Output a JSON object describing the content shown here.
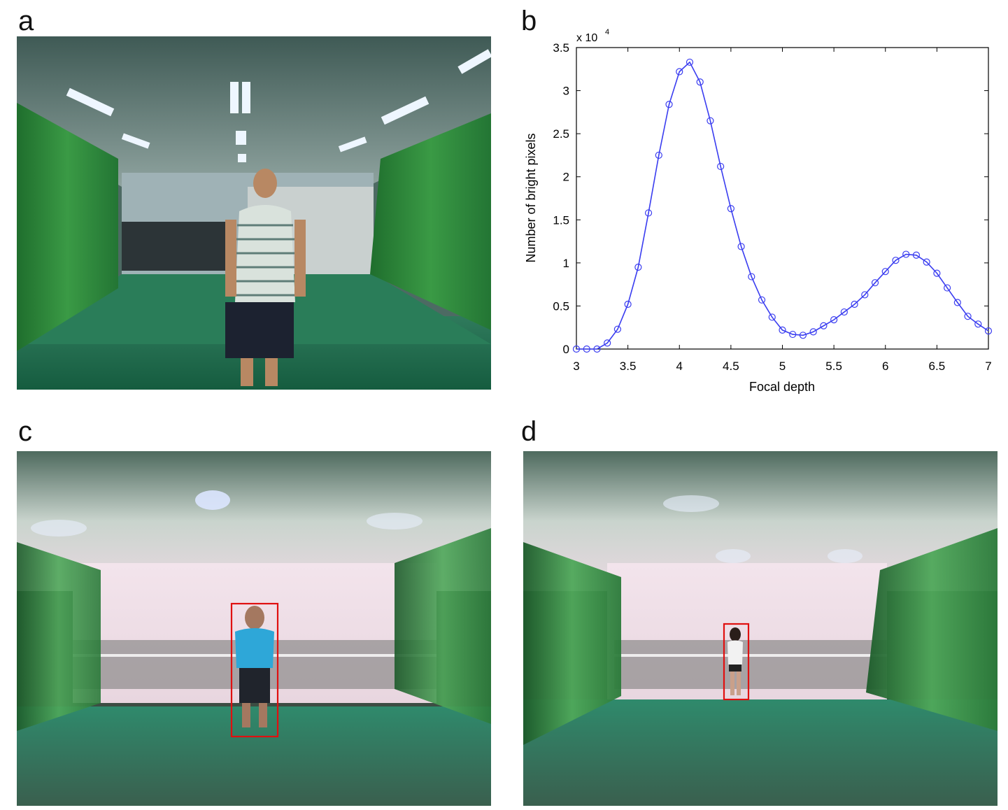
{
  "figure": {
    "panels": {
      "a": {
        "letter": "a",
        "description": "Camera view of room with green curtains and a standing man"
      },
      "b": {
        "letter": "b"
      },
      "c": {
        "letter": "c",
        "description": "Refocused synthetic aperture image, man with red bounding box"
      },
      "d": {
        "letter": "d",
        "description": "Refocused synthetic aperture image, woman with red bounding box"
      }
    }
  },
  "colors": {
    "line": "#3a3df0",
    "box": "#e01010",
    "curtain": "#2f8f3f",
    "floor": "#1f7a5a"
  },
  "chart_data": {
    "type": "line",
    "title": "",
    "xlabel": "Focal depth",
    "ylabel": "Number of bright pixels",
    "exponent_label": "x 10",
    "exponent_power": "4",
    "xlim": [
      3,
      7
    ],
    "ylim": [
      0,
      3.5
    ],
    "xticks": [
      3,
      3.5,
      4,
      4.5,
      5,
      5.5,
      6,
      6.5,
      7
    ],
    "xtick_labels": [
      "3",
      "3.5",
      "4",
      "4.5",
      "5",
      "5.5",
      "6",
      "6.5",
      "7"
    ],
    "yticks": [
      0,
      0.5,
      1,
      1.5,
      2,
      2.5,
      3,
      3.5
    ],
    "ytick_labels": [
      "0",
      "0.5",
      "1",
      "1.5",
      "2",
      "2.5",
      "3",
      "3.5"
    ],
    "series": [
      {
        "name": "bright pixels",
        "marker": "circle",
        "x": [
          3.0,
          3.1,
          3.2,
          3.3,
          3.4,
          3.5,
          3.6,
          3.7,
          3.8,
          3.9,
          4.0,
          4.1,
          4.2,
          4.3,
          4.4,
          4.5,
          4.6,
          4.7,
          4.8,
          4.9,
          5.0,
          5.1,
          5.2,
          5.3,
          5.4,
          5.5,
          5.6,
          5.7,
          5.8,
          5.9,
          6.0,
          6.1,
          6.2,
          6.3,
          6.4,
          6.5,
          6.6,
          6.7,
          6.8,
          6.9,
          7.0
        ],
        "values": [
          0.0,
          0.0,
          0.0,
          0.07,
          0.23,
          0.52,
          0.95,
          1.58,
          2.25,
          2.84,
          3.22,
          3.33,
          3.1,
          2.65,
          2.12,
          1.63,
          1.19,
          0.84,
          0.57,
          0.37,
          0.22,
          0.17,
          0.16,
          0.2,
          0.27,
          0.34,
          0.43,
          0.52,
          0.63,
          0.77,
          0.9,
          1.03,
          1.1,
          1.09,
          1.01,
          0.88,
          0.71,
          0.54,
          0.38,
          0.29,
          0.21
        ]
      }
    ]
  }
}
